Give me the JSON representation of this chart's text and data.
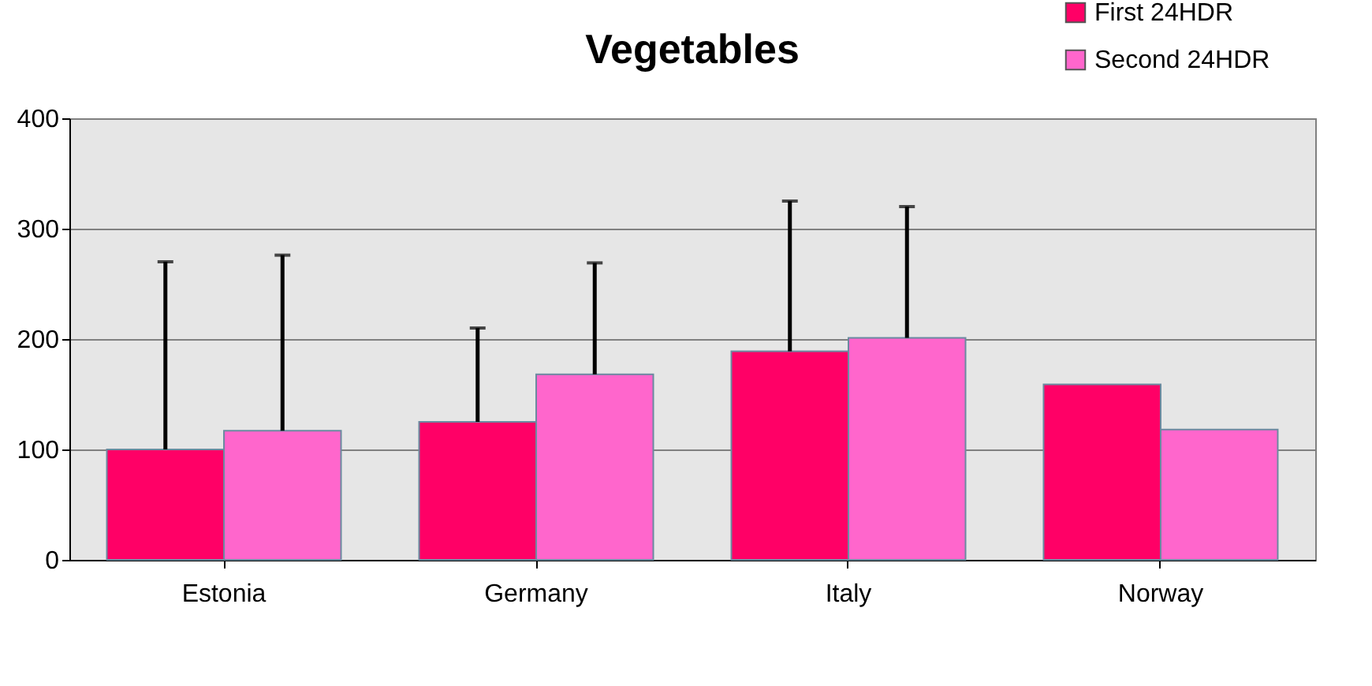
{
  "chart_data": {
    "type": "bar",
    "title": "Vegetables",
    "categories": [
      "Estonia",
      "Germany",
      "Italy",
      "Norway"
    ],
    "series": [
      {
        "name": "First 24HDR",
        "color": "#ff0066",
        "values": [
          100,
          125,
          189,
          159
        ],
        "errors": [
          [
            100,
            270
          ],
          [
            125,
            210
          ],
          [
            189,
            325
          ],
          null
        ]
      },
      {
        "name": "Second 24HDR",
        "color": "#ff66cc",
        "values": [
          117,
          168,
          201,
          118
        ],
        "errors": [
          [
            117,
            276
          ],
          [
            168,
            269
          ],
          [
            201,
            320
          ],
          null
        ]
      }
    ],
    "ylim": [
      0,
      400
    ],
    "yticks": [
      0,
      100,
      200,
      300,
      400
    ],
    "grid": "y",
    "legend": "top right"
  }
}
